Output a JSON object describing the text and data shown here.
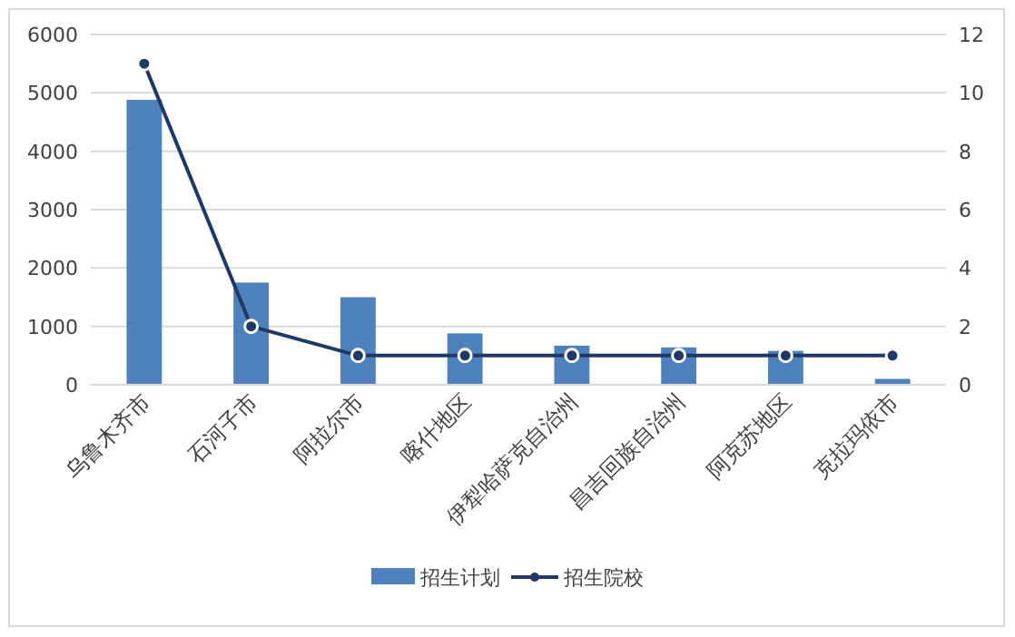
{
  "chart_data": {
    "type": "bar",
    "categories": [
      "乌鲁木齐市",
      "石河子市",
      "阿拉尔市",
      "喀什地区",
      "伊犁哈萨克自治州",
      "昌吉回族自治州",
      "阿克苏地区",
      "克拉玛依市"
    ],
    "series": [
      {
        "name": "招生计划",
        "color": "#4f81bd",
        "values": [
          4880,
          1750,
          1500,
          880,
          670,
          640,
          580,
          100
        ]
      },
      {
        "name": "招生院校",
        "type": "line",
        "axis": "y2",
        "color": "#1f3864",
        "marker": "circle",
        "values": [
          11,
          2,
          1,
          1,
          1,
          1,
          1,
          1
        ]
      }
    ],
    "ylim": [
      0,
      6000
    ],
    "yticks": [
      0,
      1000,
      2000,
      3000,
      4000,
      5000,
      6000
    ],
    "y2lim": [
      0,
      12
    ],
    "y2ticks": [
      0,
      2,
      4,
      6,
      8,
      10,
      12
    ],
    "grid": "y",
    "legend": "bottom"
  }
}
